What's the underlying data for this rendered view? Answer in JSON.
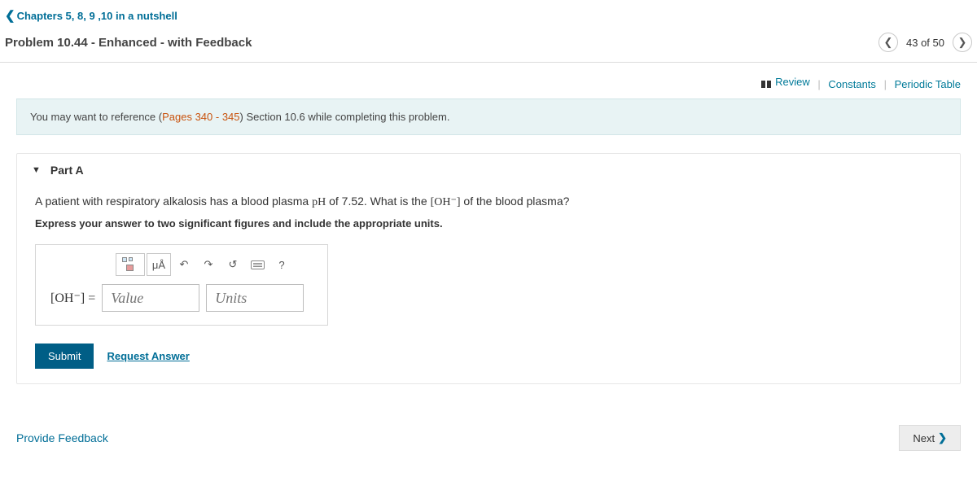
{
  "breadcrumb": {
    "label": "Chapters 5, 8, 9 ,10 in a nutshell"
  },
  "page_title": "Problem 10.44 - Enhanced - with Feedback",
  "pager": {
    "text": "43 of 50"
  },
  "toolbar": {
    "review": "Review",
    "constants": "Constants",
    "periodic_table": "Periodic Table"
  },
  "hint": {
    "prefix": "You may want to reference (",
    "pages": "Pages 340 - 345",
    "suffix": ") Section 10.6 while completing this problem."
  },
  "part": {
    "label": "Part A",
    "question_pre": "A patient with respiratory alkalosis has a blood plasma ",
    "question_ph": "pH",
    "question_mid": " of 7.52. What is the ",
    "question_oh": "[OH⁻]",
    "question_post": " of the blood plasma?",
    "instruction": "Express your answer to two significant figures and include the appropriate units.",
    "toolbar": {
      "templates_tip": "Templates",
      "symbols": "μÅ",
      "undo_tip": "Undo",
      "redo_tip": "Redo",
      "reset_tip": "Reset",
      "keyboard_tip": "Keyboard",
      "help": "?"
    },
    "answer": {
      "lhs": "[OH⁻] =",
      "value_placeholder": "Value",
      "units_placeholder": "Units"
    },
    "submit_label": "Submit",
    "request_answer": "Request Answer"
  },
  "footer": {
    "provide_feedback": "Provide Feedback",
    "next": "Next"
  }
}
